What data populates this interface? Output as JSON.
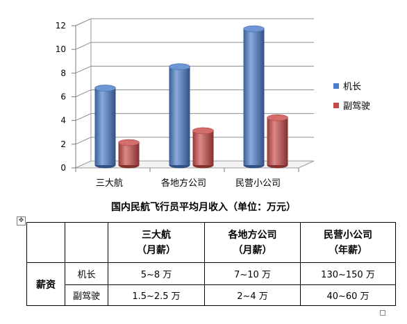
{
  "chart_data": {
    "type": "bar",
    "categories": [
      "三大航",
      "各地方公司",
      "民营小公司"
    ],
    "series": [
      {
        "name": "机长",
        "values": [
          6.5,
          8.3,
          11.5
        ],
        "color": "#4a7cc9"
      },
      {
        "name": "副驾驶",
        "values": [
          1.9,
          2.9,
          4.0
        ],
        "color": "#c94a48"
      }
    ],
    "ylim": [
      0,
      12
    ],
    "yticks": [
      "0",
      "2",
      "4",
      "6",
      "8",
      "10",
      "12"
    ],
    "grid": true,
    "legend": "right",
    "style": "3d-cylinder"
  },
  "caption": "国内民航飞行员平均月收入（单位：万元）",
  "table": {
    "anchor_icon": "move-handle-icon",
    "headers": [
      {
        "name": "三大航",
        "unit": "（月薪）"
      },
      {
        "name": "各地方公司",
        "unit": "（月薪）"
      },
      {
        "name": "民营小公司",
        "unit": "（年薪）"
      }
    ],
    "group_label": "薪资",
    "rows": [
      {
        "label": "机长",
        "values": [
          "5~8 万",
          "7~10 万",
          "130~150 万"
        ]
      },
      {
        "label": "副驾驶",
        "values": [
          "1.5~2.5 万",
          "2~4 万",
          "40~60 万"
        ]
      }
    ]
  }
}
